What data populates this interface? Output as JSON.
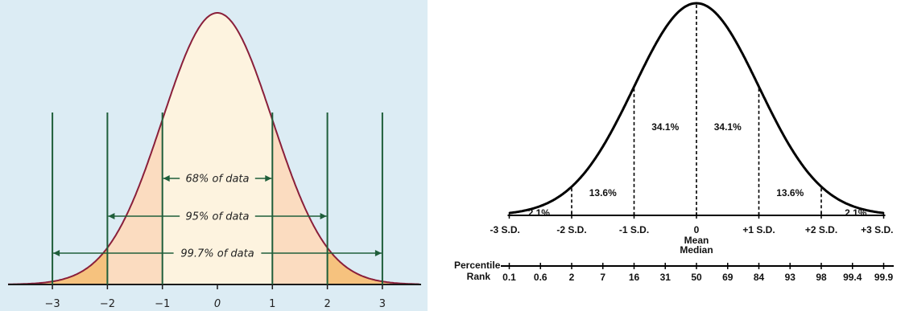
{
  "chart_data": [
    {
      "type": "area",
      "title": "",
      "xlabel": "",
      "ylabel": "",
      "distribution": "standard normal",
      "xlim": [
        -3.5,
        3.5
      ],
      "x_ticks": [
        "−3",
        "−2",
        "−1",
        "0",
        "1",
        "2",
        "3"
      ],
      "x_tick_values": [
        -3,
        -2,
        -1,
        0,
        1,
        2,
        3
      ],
      "vertical_lines_at": [
        -3,
        -2,
        -1,
        1,
        2,
        3
      ],
      "ranges": [
        {
          "label": "68% of data",
          "from": -1,
          "to": 1
        },
        {
          "label": "95% of data",
          "from": -2,
          "to": 2
        },
        {
          "label": "99.7% of data",
          "from": -3,
          "to": 3
        }
      ],
      "colors": {
        "background": "#dcecf4",
        "curve": "#8a1f3a",
        "fill_center": "#fdf3df",
        "fill_middle": "#fbdcc0",
        "fill_tails": "#f6c27e",
        "lines": "#1f5e3a"
      }
    },
    {
      "type": "line",
      "title": "",
      "distribution": "standard normal",
      "xlim": [
        -3,
        3
      ],
      "sd_ticks": [
        "-3 S.D.",
        "-2 S.D.",
        "-1 S.D.",
        "0",
        "+1 S.D.",
        "+2 S.D.",
        "+3 S.D."
      ],
      "sd_values": [
        -3,
        -2,
        -1,
        0,
        1,
        2,
        3
      ],
      "center_labels": [
        "Mean",
        "Median"
      ],
      "regions": [
        {
          "from": -2,
          "to": -1,
          "percent": "13.6%"
        },
        {
          "from": -1,
          "to": 0,
          "percent": "34.1%"
        },
        {
          "from": 0,
          "to": 1,
          "percent": "34.1%"
        },
        {
          "from": 1,
          "to": 2,
          "percent": "13.6%"
        },
        {
          "from": -3,
          "to": -2,
          "percent": "2.1%"
        },
        {
          "from": 2,
          "to": 3,
          "percent": "2.1%"
        }
      ],
      "percentile_label": [
        "Percentile",
        "Rank"
      ],
      "percentile_ranks": [
        "0.1",
        "0.6",
        "2",
        "7",
        "16",
        "31",
        "50",
        "69",
        "84",
        "93",
        "98",
        "99.4",
        "99.9"
      ],
      "percentile_positions": [
        -3,
        -2.5,
        -2,
        -1.5,
        -1,
        -0.5,
        0,
        0.5,
        1,
        1.5,
        2,
        2.5,
        3
      ]
    }
  ]
}
